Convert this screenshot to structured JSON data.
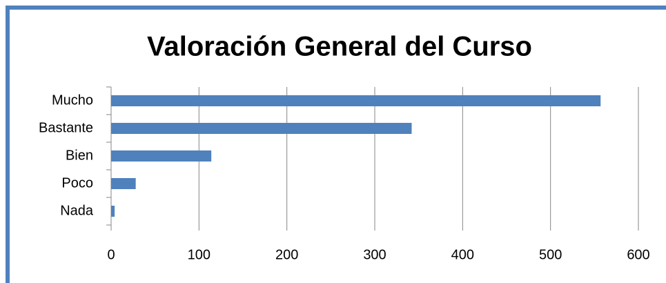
{
  "chart_data": {
    "type": "bar",
    "orientation": "horizontal",
    "title": "Valoración General del Curso",
    "categories": [
      "Mucho",
      "Bastante",
      "Bien",
      "Poco",
      "Nada"
    ],
    "values": [
      557,
      342,
      114,
      28,
      4
    ],
    "color": "#4f81bd",
    "xlim": [
      0,
      600
    ],
    "xticks": [
      0,
      100,
      200,
      300,
      400,
      500,
      600
    ],
    "grid": true
  }
}
